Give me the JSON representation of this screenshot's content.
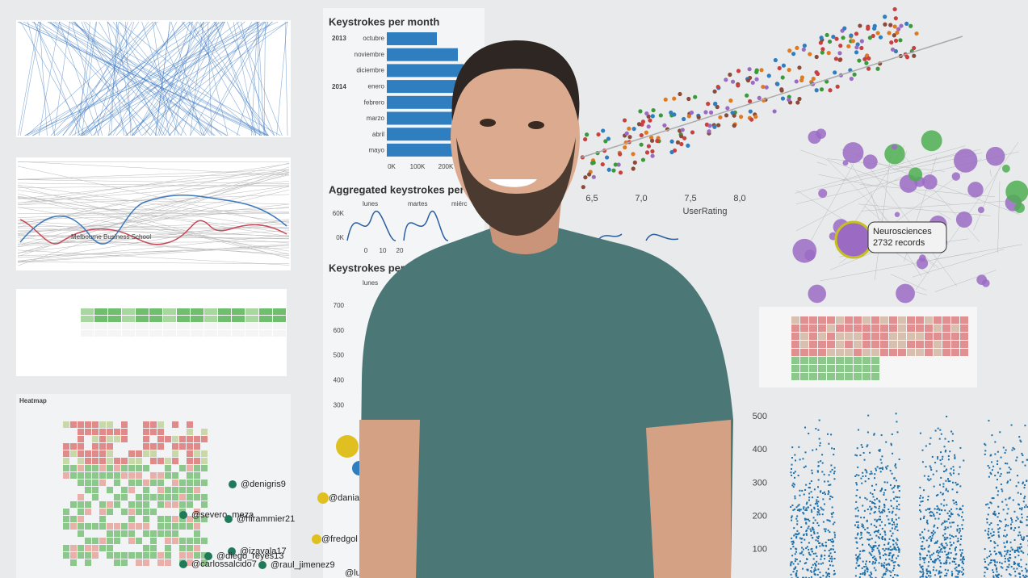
{
  "month_panel": {
    "title": "Keystrokes per month",
    "years": [
      "2013",
      "2014"
    ],
    "months": [
      "octubre",
      "noviembre",
      "diciembre",
      "enero",
      "febrero",
      "marzo",
      "abril",
      "mayo"
    ],
    "axis": [
      "0K",
      "100K",
      "200K"
    ]
  },
  "weekday_panel": {
    "title": "Aggregated keystrokes per w",
    "days": [
      "lunes",
      "martes",
      "miérc"
    ],
    "y_axis": [
      "60K",
      "0K"
    ],
    "x_axis": [
      "0",
      "10",
      "20"
    ]
  },
  "weekly_panel": {
    "title": "Keystrokes per w",
    "day": "lunes",
    "y_axis": [
      "700",
      "600",
      "500",
      "400",
      "300"
    ]
  },
  "scatter_panel": {
    "x_axis": [
      "6,5",
      "7,0",
      "7,5",
      "8,0"
    ],
    "x_label": "UserRating"
  },
  "network_tooltip": {
    "name": "Neurosciences",
    "records": "2732 records"
  },
  "dot_panel": {
    "y_axis": [
      "500",
      "400",
      "300",
      "200",
      "100"
    ]
  },
  "ranking_panel": {
    "label": "Melbourne Business School"
  },
  "heatmap_panel": {
    "title": "Heatmap"
  },
  "twitter_graph": {
    "users": [
      "@denigris9",
      "@severo_meza",
      "@hirammier21",
      "@izavala17",
      "@diego_reyes13",
      "@carlossalcido7",
      "@raul_jimenez9",
      "@dania",
      "@fredgol",
      "@luc"
    ]
  }
}
